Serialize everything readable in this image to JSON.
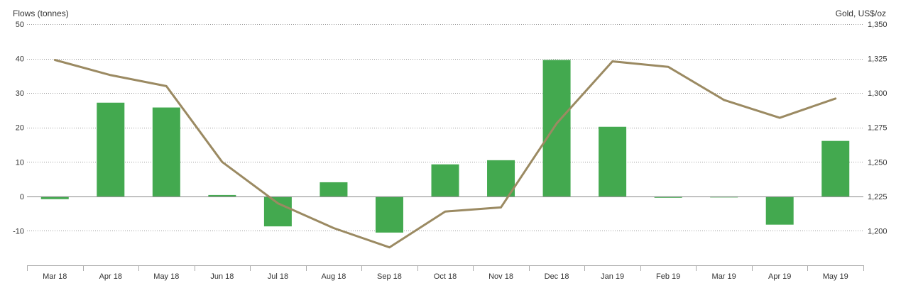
{
  "chart_data": {
    "type": "bar",
    "categories": [
      "Mar 18",
      "Apr 18",
      "May 18",
      "Jun 18",
      "Jul 18",
      "Aug 18",
      "Sep 18",
      "Oct 18",
      "Nov 18",
      "Dec 18",
      "Jan 19",
      "Feb 19",
      "Mar 19",
      "Apr 19",
      "May 19"
    ],
    "series": [
      {
        "type": "bar",
        "axis": "left",
        "color": "#43a94f",
        "values": [
          -0.8,
          27.2,
          25.8,
          0.4,
          -8.7,
          4.1,
          -10.5,
          9.3,
          10.5,
          39.6,
          20.2,
          -0.4,
          -0.3,
          -8.2,
          16.1
        ]
      },
      {
        "type": "line",
        "axis": "right",
        "color": "#9b8a62",
        "values": [
          1324,
          1313,
          1305,
          1250,
          1220,
          1202,
          1188,
          1214,
          1217,
          1278,
          1323,
          1319,
          1295,
          1282,
          1296
        ]
      }
    ],
    "left_axis": {
      "label": "Flows (tonnes)",
      "min": -20,
      "max": 50,
      "ticks": [
        50,
        40,
        30,
        20,
        10,
        0,
        -10
      ],
      "tick_labels": [
        "50",
        "40",
        "30",
        "20",
        "10",
        "0",
        "-10"
      ]
    },
    "right_axis": {
      "label": "Gold, US$/oz",
      "min": 1175,
      "max": 1350,
      "ticks": [
        1350,
        1325,
        1300,
        1275,
        1250,
        1225,
        1200
      ],
      "tick_labels": [
        "1,350",
        "1,325",
        "1,300",
        "1,275",
        "1,250",
        "1,225",
        "1,200"
      ]
    },
    "grid": true,
    "legend": "none"
  }
}
